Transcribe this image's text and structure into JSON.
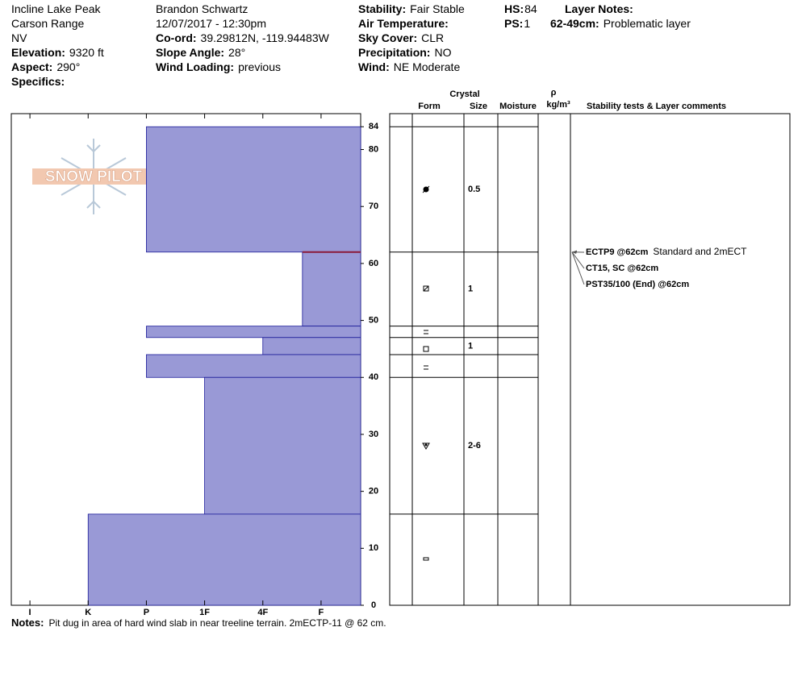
{
  "header": {
    "columns": [
      [
        {
          "value": "Incline Lake Peak"
        },
        {
          "value": "Carson Range"
        },
        {
          "value": "NV"
        },
        {
          "label": "Elevation:",
          "value": "9320 ft"
        },
        {
          "label": "Aspect:",
          "value": "290°"
        },
        {
          "label": "Specifics:"
        }
      ],
      [
        {
          "value": "Brandon Schwartz"
        },
        {
          "value": "12/07/2017 - 12:30pm"
        },
        {
          "label": "Co-ord:",
          "value": "39.29812N, -119.94483W"
        },
        {
          "label": "Slope Angle:",
          "value": "28°"
        },
        {
          "label": "Wind Loading:",
          "value": "previous"
        }
      ],
      [
        {
          "label": "Stability:",
          "value": "Fair Stable"
        },
        {
          "label": "Air Temperature:"
        },
        {
          "label": "Sky Cover:",
          "value": "CLR"
        },
        {
          "label": "Precipitation:",
          "value": "NO"
        },
        {
          "label": "Wind:",
          "value": "NE Moderate"
        }
      ],
      [
        {
          "label": "HS:",
          "value": "84"
        },
        {
          "label": "PS:",
          "value": "1"
        }
      ],
      [
        {
          "label": "Layer Notes:"
        },
        {
          "label": "62-49cm:",
          "value": "Problematic layer"
        }
      ]
    ]
  },
  "logo": "SNOW PILOT",
  "profile": {
    "ylim": [
      0,
      86.3
    ],
    "yticks": [
      0,
      10,
      20,
      30,
      40,
      50,
      60,
      70,
      80,
      84
    ],
    "xlim": [
      0.68,
      6.68
    ],
    "xticks": [
      {
        "value": 1,
        "label": "I"
      },
      {
        "value": 2,
        "label": "K"
      },
      {
        "value": 3,
        "label": "P"
      },
      {
        "value": 4,
        "label": "1F"
      },
      {
        "value": 5,
        "label": "4F"
      },
      {
        "value": 6,
        "label": "F"
      }
    ],
    "color": "#9999d6",
    "layers": [
      {
        "top": 84,
        "bottom": 62,
        "hardness": 3,
        "size": "0.5"
      },
      {
        "top": 62,
        "bottom": 49,
        "hardness": 5.68,
        "size": "1"
      },
      {
        "top": 49,
        "bottom": 47,
        "hardness": 3
      },
      {
        "top": 47,
        "bottom": 44,
        "hardness": 5,
        "size": "1"
      },
      {
        "top": 44,
        "bottom": 40,
        "hardness": 3
      },
      {
        "top": 40,
        "bottom": 16,
        "hardness": 4,
        "size": "2-6"
      },
      {
        "top": 16,
        "bottom": 0,
        "hardness": 2
      }
    ]
  },
  "table": {
    "crystal": "Crystal",
    "form": "Form",
    "size": "Size",
    "moisture": "Moisture",
    "rho": "ρ",
    "density_unit": "kg/m³",
    "comments": "Stability tests & Layer comments"
  },
  "tests": [
    {
      "label": "ECTP9 @62cm",
      "comment": "Standard and 2mECT",
      "depth": 62
    },
    {
      "label": "CT15, SC @62cm",
      "depth": 62
    },
    {
      "label": "PST35/100 (End) @62cm",
      "depth": 62
    }
  ],
  "notes": {
    "label": "Notes:",
    "text": "Pit dug in area of hard wind slab in near treeline terrain. 2mECTP-11 @ 62 cm."
  }
}
